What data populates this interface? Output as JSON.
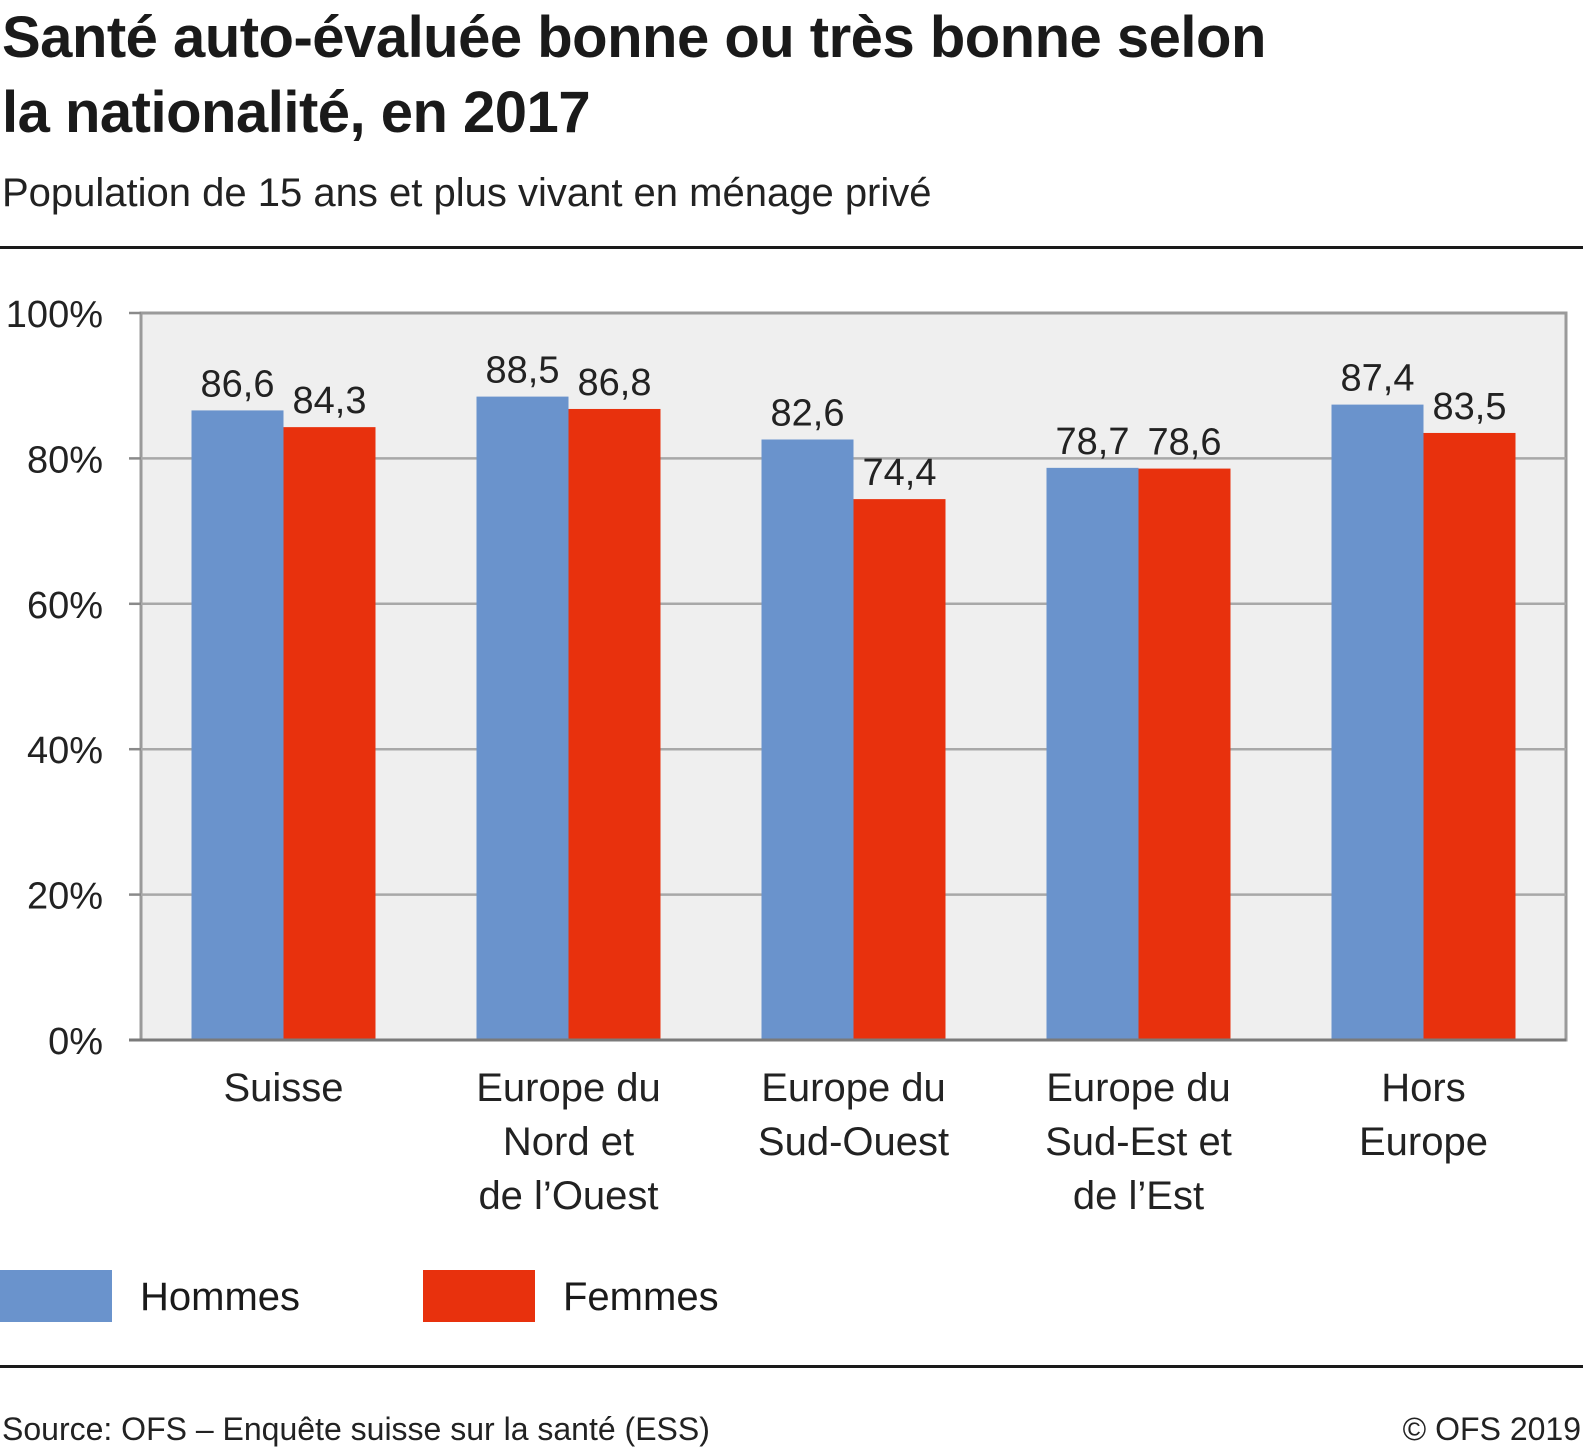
{
  "header": {
    "title": "Santé auto-évaluée bonne ou très bonne selon la nationalité, en 2017",
    "subtitle": "Population de 15 ans et plus vivant en ménage privé"
  },
  "legend": [
    {
      "label": "Hommes",
      "color": "#6a93cc"
    },
    {
      "label": "Femmes",
      "color": "#e8310d"
    }
  ],
  "footer": {
    "source": "Source: OFS – Enquête suisse sur la santé (ESS)",
    "copyright": "© OFS 2019"
  },
  "chart_data": {
    "type": "bar",
    "categories": [
      [
        "Suisse"
      ],
      [
        "Europe du",
        "Nord et",
        "de l’Ouest"
      ],
      [
        "Europe du",
        "Sud-Ouest"
      ],
      [
        "Europe du",
        "Sud-Est et",
        "de l’Est"
      ],
      [
        "Hors",
        "Europe"
      ]
    ],
    "series": [
      {
        "name": "Hommes",
        "color": "#6a93cc",
        "values": [
          86.6,
          88.5,
          82.6,
          78.7,
          87.4
        ],
        "labels": [
          "86,6",
          "88,5",
          "82,6",
          "78,7",
          "87,4"
        ]
      },
      {
        "name": "Femmes",
        "color": "#e8310d",
        "values": [
          84.3,
          86.8,
          74.4,
          78.6,
          83.5
        ],
        "labels": [
          "84,3",
          "86,8",
          "74,4",
          "78,6",
          "83,5"
        ]
      }
    ],
    "ylim": [
      0,
      100
    ],
    "yticks": [
      "0%",
      "20%",
      "40%",
      "60%",
      "80%",
      "100%"
    ],
    "grid": true,
    "legend_position": "bottom-left",
    "plot_background": "#efefef",
    "gridline_color": "#a8a8a8"
  }
}
